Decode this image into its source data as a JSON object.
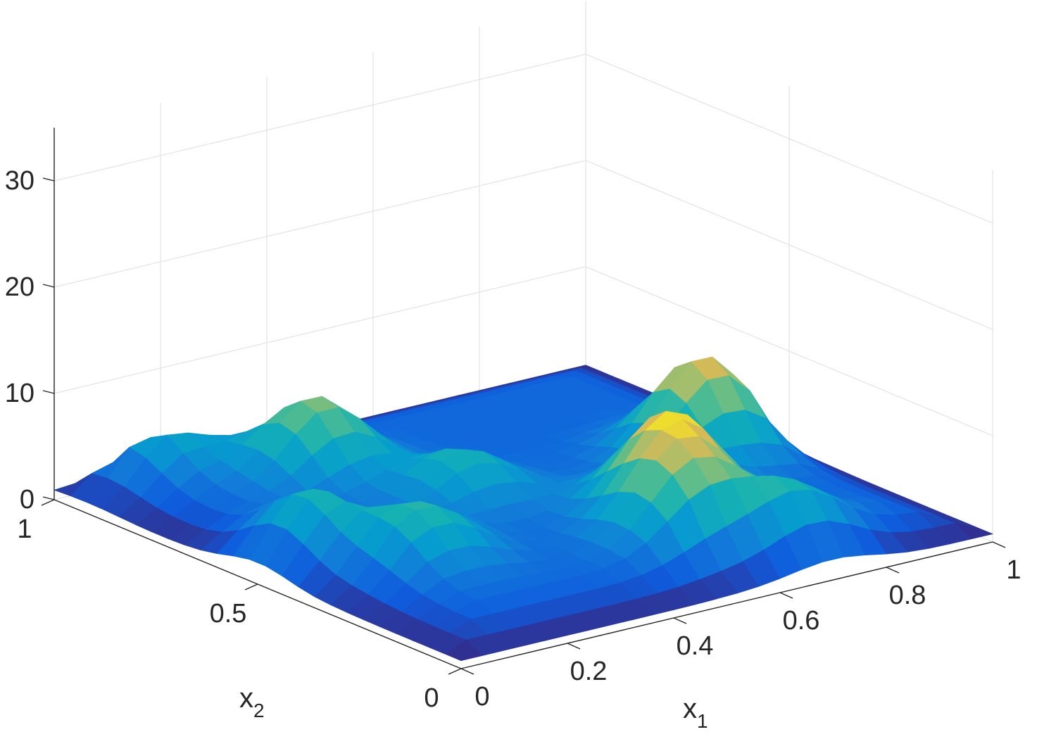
{
  "chart_data": {
    "type": "surface",
    "title": "",
    "xlabel": "x",
    "xlabel_sub": "1",
    "ylabel": "x",
    "ylabel_sub": "2",
    "zlabel": "",
    "xlim": [
      0,
      1
    ],
    "ylim": [
      0,
      1
    ],
    "zlim": [
      0,
      35
    ],
    "x_ticks": [
      0,
      0.2,
      0.4,
      0.6,
      0.8,
      1
    ],
    "x_tick_labels": [
      "0",
      "0.2",
      "0.4",
      "0.6",
      "0.8",
      "1"
    ],
    "y_ticks": [
      0,
      0.5,
      1
    ],
    "y_tick_labels": [
      "0",
      "0.5",
      "1"
    ],
    "z_ticks": [
      0,
      10,
      20,
      30
    ],
    "z_tick_labels": [
      "0",
      "10",
      "20",
      "30"
    ],
    "grid": true,
    "colormap": "parula",
    "peaks": [
      {
        "x1": 0.3,
        "x2": 0.75,
        "height": 7.0
      },
      {
        "x1": 0.62,
        "x2": 0.3,
        "height": 8.0
      },
      {
        "x1": 0.55,
        "x2": 0.18,
        "height": 6.5
      },
      {
        "x1": 0.05,
        "x2": 0.5,
        "height": 6.5
      },
      {
        "x1": 0.7,
        "x2": 0.05,
        "height": 6.0
      },
      {
        "x1": 0.82,
        "x2": 0.48,
        "height": 9.0
      },
      {
        "x1": 0.18,
        "x2": 0.33,
        "height": 5.0
      },
      {
        "x1": 0.4,
        "x2": 0.52,
        "height": 4.5
      },
      {
        "x1": 0.12,
        "x2": 0.92,
        "height": 4.0
      }
    ],
    "baseline": 3.0,
    "grid_resolution": 25
  }
}
